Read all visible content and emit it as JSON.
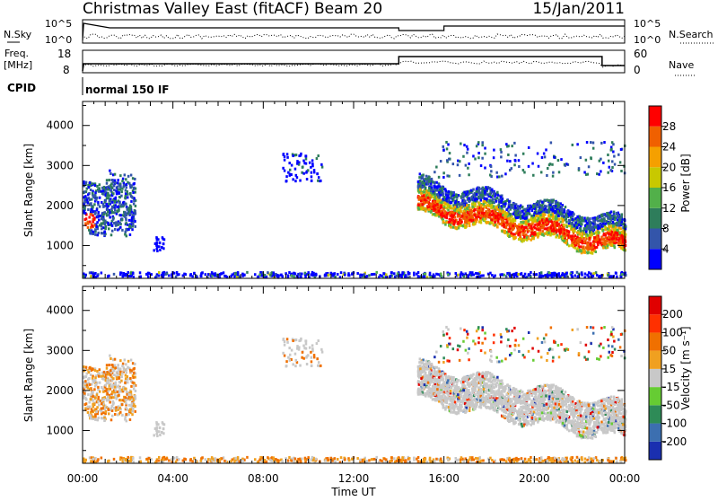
{
  "header": {
    "title": "Christmas Valley East (fitACF)",
    "beam": "Beam 20",
    "date": "15/Jan/2011"
  },
  "strips": {
    "nsky_label": "N.Sky",
    "nsky_ticks": [
      "10^5",
      "10^0"
    ],
    "nsearch_label": "N.Search",
    "freq_label_1": "Freq.",
    "freq_label_2": "[MHz]",
    "freq_ticks": [
      "18",
      "8"
    ],
    "nave_ticks": [
      "60",
      "0"
    ],
    "nave_label": "Nave",
    "cpid_label": "CPID",
    "cpid_value": "normal 150 IF"
  },
  "chart_data": [
    {
      "type": "heatmap",
      "name": "power",
      "ylabel": "Slant Range [km]",
      "ylim": [
        180,
        4600
      ],
      "yticks": [
        "1000",
        "2000",
        "3000",
        "4000"
      ],
      "xticks": [
        "00:00",
        "04:00",
        "08:00",
        "12:00",
        "16:00",
        "20:00",
        "00:00"
      ],
      "xlim_hours": [
        0,
        24
      ],
      "colorbar_label": "Power [dB]",
      "colorbar_ticks": [
        "4",
        "8",
        "12",
        "16",
        "20",
        "24",
        "28"
      ],
      "colorbar_colors": [
        "#0000ff",
        "#3355aa",
        "#2e7d5b",
        "#52b04a",
        "#c8c800",
        "#f5a000",
        "#f06000",
        "#ff0000"
      ]
    },
    {
      "type": "heatmap",
      "name": "velocity",
      "ylabel": "Slant Range [km]",
      "ylim": [
        180,
        4600
      ],
      "yticks": [
        "1000",
        "2000",
        "3000",
        "4000"
      ],
      "xticks": [
        "00:00",
        "04:00",
        "08:00",
        "12:00",
        "16:00",
        "20:00",
        "00:00"
      ],
      "xlim_hours": [
        0,
        24
      ],
      "xlabel": "Time UT",
      "colorbar_label": "Velocity [m s⁻¹]",
      "colorbar_ticks": [
        "200",
        "100",
        "50",
        "15",
        "-15",
        "-50",
        "-100",
        "-200"
      ],
      "colorbar_colors": [
        "#1a2fb0",
        "#3c6fb0",
        "#2e8b57",
        "#66cc33",
        "#c8c8c8",
        "#f0a020",
        "#f07000",
        "#ff3000",
        "#e00000"
      ]
    }
  ]
}
